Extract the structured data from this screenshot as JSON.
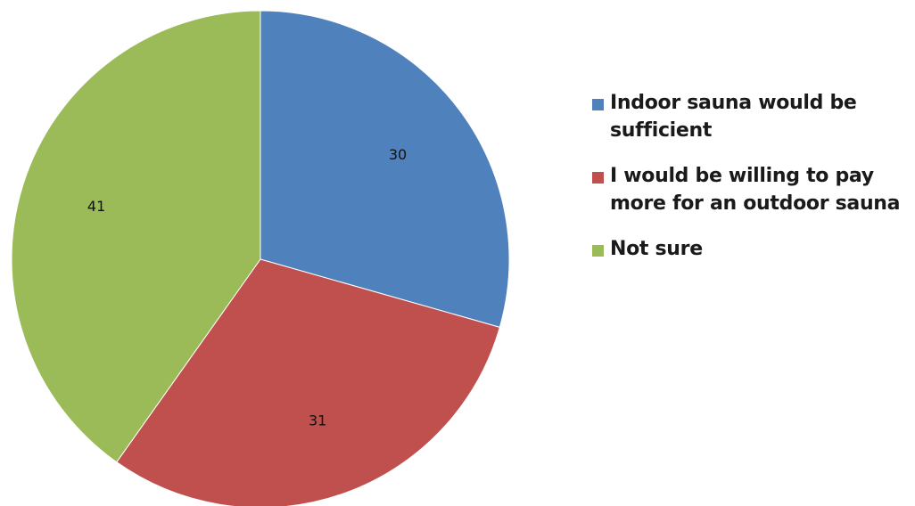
{
  "chart_data": {
    "type": "pie",
    "title": "",
    "slices": [
      {
        "label": "Indoor sauna would be sufficient",
        "value": 30,
        "color": "#4F81BD"
      },
      {
        "label": "I would be willing to pay more for an outdoor sauna",
        "value": 31,
        "color": "#C0504D"
      },
      {
        "label": "Not sure",
        "value": 41,
        "color": "#9BBB59"
      }
    ],
    "legend_position": "right",
    "data_labels": true
  },
  "legend": {
    "items": [
      {
        "label": "Indoor sauna would be sufficient",
        "color": "#4F81BD"
      },
      {
        "label": "I would be willing to pay more for an outdoor sauna",
        "color": "#C0504D"
      },
      {
        "label": "Not sure",
        "color": "#9BBB59"
      }
    ]
  }
}
